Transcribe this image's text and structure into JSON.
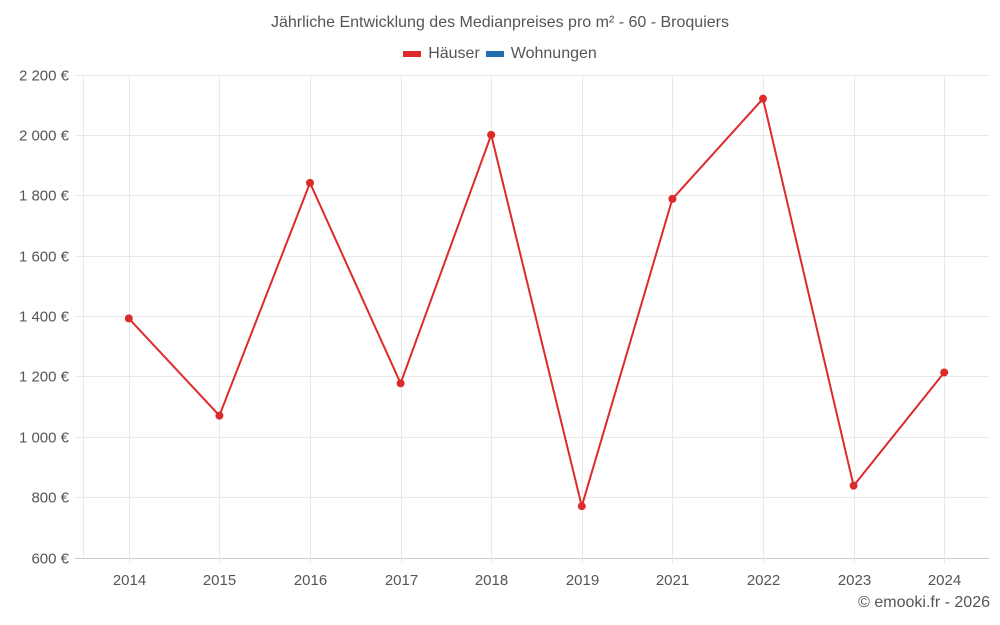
{
  "title": "Jährliche Entwicklung des Medianpreises pro m² - 60 - Broquiers",
  "legend": [
    {
      "label": "Häuser",
      "color": "#dd2a2a"
    },
    {
      "label": "Wohnungen",
      "color": "#1f6fb0"
    }
  ],
  "credit": "© emooki.fr - 2026",
  "chart_data": {
    "type": "line",
    "title": "Jährliche Entwicklung des Medianpreises pro m² - 60 - Broquiers",
    "xlabel": "",
    "ylabel": "",
    "categories": [
      "2014",
      "2015",
      "2016",
      "2017",
      "2018",
      "2019",
      "2021",
      "2022",
      "2023",
      "2024"
    ],
    "series": [
      {
        "name": "Häuser",
        "color": "#dd2a2a",
        "values": [
          1392,
          1070,
          1841,
          1177,
          2000,
          770,
          1788,
          2120,
          838,
          1213
        ]
      },
      {
        "name": "Wohnungen",
        "color": "#1f6fb0",
        "values": []
      }
    ],
    "ylim": [
      600,
      2200
    ],
    "yticks": [
      600,
      800,
      1000,
      1200,
      1400,
      1600,
      1800,
      2000,
      2200
    ],
    "ytick_labels": [
      "600 €",
      "800 €",
      "1 000 €",
      "1 200 €",
      "1 400 €",
      "1 600 €",
      "1 800 €",
      "2 000 €",
      "2 200 €"
    ],
    "grid": true,
    "legend_position": "top"
  }
}
